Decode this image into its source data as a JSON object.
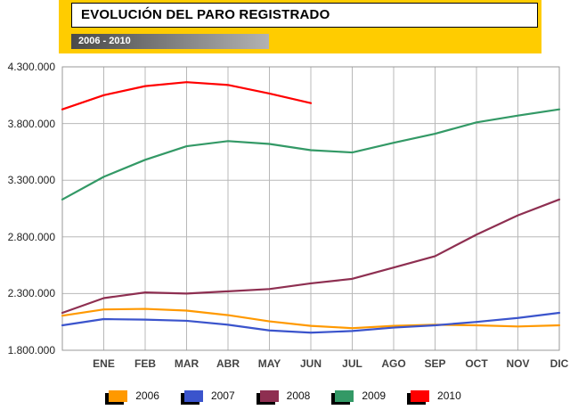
{
  "header": {
    "title": "EVOLUCIÓN DEL PARO REGISTRADO",
    "subtitle": "2006 - 2010"
  },
  "colors": {
    "header_yellow": "#ffcc00",
    "subtitle_gray_start": "#4a4a4a",
    "subtitle_gray_end": "#b2b2b2",
    "grid_line": "#b8b8b8",
    "plot_border": "#999999"
  },
  "chart_data": {
    "type": "line",
    "title": "EVOLUCIÓN DEL PARO REGISTRADO",
    "subtitle": "2006 - 2010",
    "x_labels": [
      "ENE",
      "FEB",
      "MAR",
      "ABR",
      "MAY",
      "JUN",
      "JUL",
      "AGO",
      "SEP",
      "OCT",
      "NOV",
      "DIC"
    ],
    "y_tick_values": [
      1800000,
      2300000,
      2800000,
      3300000,
      3800000,
      4300000
    ],
    "y_tick_labels": [
      "1.800.000",
      "2.300.000",
      "2.800.000",
      "3.300.000",
      "3.800.000",
      "4.300.000"
    ],
    "ylim": [
      1800000,
      4300000
    ],
    "grid": true,
    "legend_position": "bottom",
    "layout_note": "each series starts at the left axis edge with one point before the ENE gridline; the 2010 series ends at JUN",
    "series": [
      {
        "name": "2006",
        "color": "#ff9900",
        "values": [
          2105000,
          2160000,
          2165000,
          2150000,
          2110000,
          2055000,
          2015000,
          1995000,
          2015000,
          2025000,
          2020000,
          2010000,
          2020000
        ]
      },
      {
        "name": "2007",
        "color": "#3b54cc",
        "values": [
          2020000,
          2075000,
          2070000,
          2060000,
          2025000,
          1975000,
          1955000,
          1970000,
          2000000,
          2020000,
          2050000,
          2085000,
          2130000
        ]
      },
      {
        "name": "2008",
        "color": "#8e2f51",
        "values": [
          2130000,
          2260000,
          2310000,
          2300000,
          2320000,
          2340000,
          2390000,
          2430000,
          2530000,
          2630000,
          2820000,
          2990000,
          3130000
        ]
      },
      {
        "name": "2009",
        "color": "#339966",
        "values": [
          3130000,
          3330000,
          3480000,
          3600000,
          3645000,
          3620000,
          3565000,
          3545000,
          3630000,
          3710000,
          3810000,
          3870000,
          3925000
        ]
      },
      {
        "name": "2010",
        "color": "#ff0000",
        "values": [
          3925000,
          4050000,
          4130000,
          4165000,
          4140000,
          4065000,
          3980000
        ]
      }
    ]
  }
}
